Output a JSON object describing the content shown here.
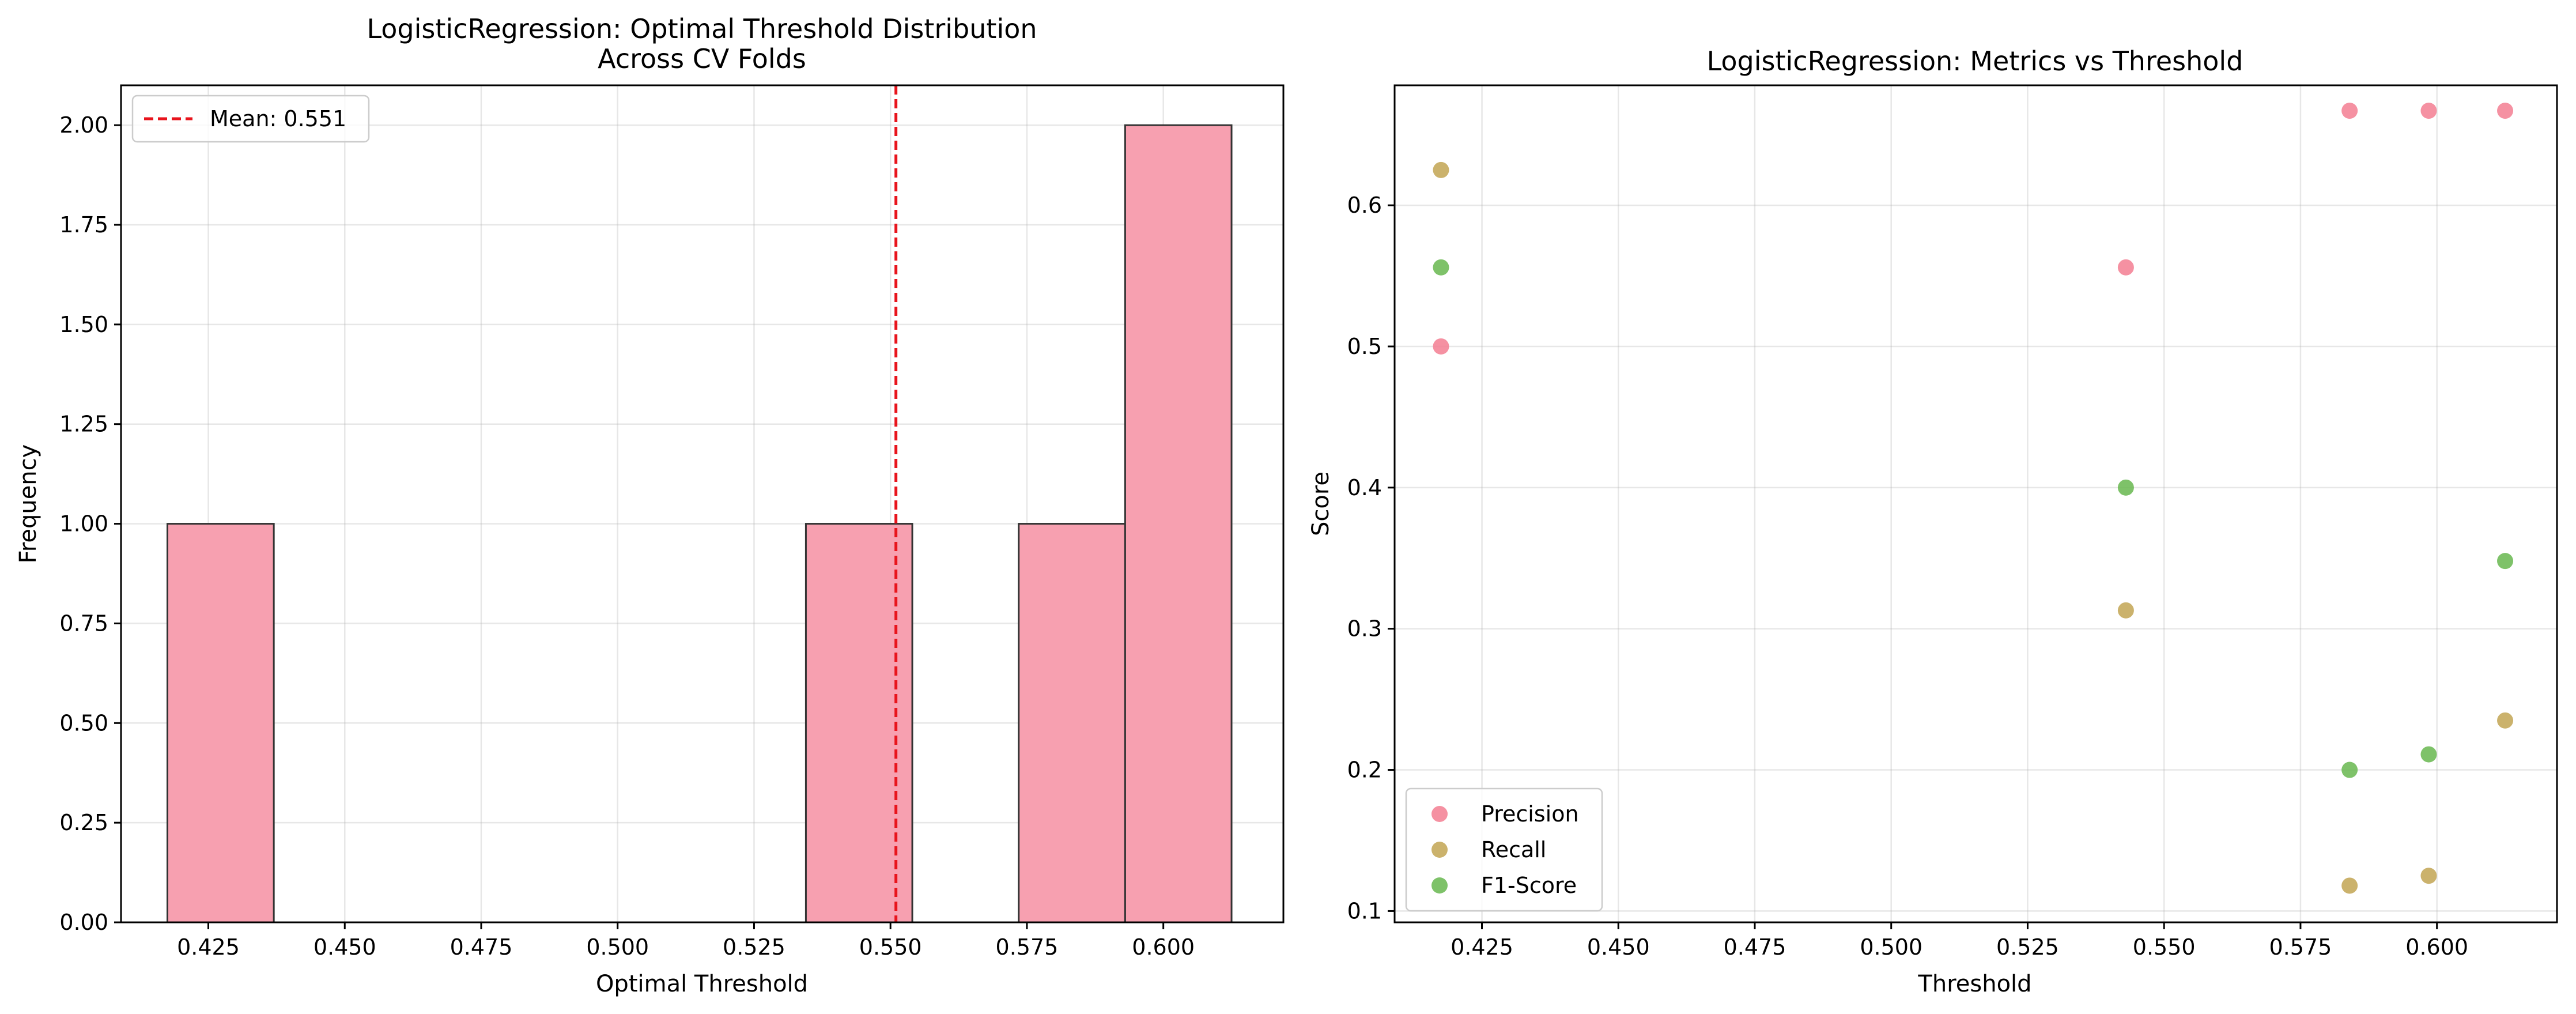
{
  "chart_data": [
    {
      "type": "bar",
      "subtype": "histogram",
      "title": "LogisticRegression: Optimal Threshold Distribution\nAcross CV Folds",
      "xlabel": "Optimal Threshold",
      "ylabel": "Frequency",
      "xlim": [
        0.409,
        0.622
      ],
      "ylim": [
        0,
        2.1
      ],
      "xticks": [
        0.425,
        0.45,
        0.475,
        0.5,
        0.525,
        0.55,
        0.575,
        0.6
      ],
      "xtick_labels": [
        "0.425",
        "0.450",
        "0.475",
        "0.500",
        "0.525",
        "0.550",
        "0.575",
        "0.600"
      ],
      "yticks": [
        0,
        0.25,
        0.5,
        0.75,
        1.0,
        1.25,
        1.5,
        1.75,
        2.0
      ],
      "ytick_labels": [
        "0.00",
        "0.25",
        "0.50",
        "0.75",
        "1.00",
        "1.25",
        "1.50",
        "1.75",
        "2.00"
      ],
      "bins": [
        {
          "x0": 0.4175,
          "x1": 0.437,
          "value": 1
        },
        {
          "x0": 0.437,
          "x1": 0.4565,
          "value": 0
        },
        {
          "x0": 0.4565,
          "x1": 0.476,
          "value": 0
        },
        {
          "x0": 0.476,
          "x1": 0.4955,
          "value": 0
        },
        {
          "x0": 0.4955,
          "x1": 0.515,
          "value": 0
        },
        {
          "x0": 0.515,
          "x1": 0.5345,
          "value": 0
        },
        {
          "x0": 0.5345,
          "x1": 0.554,
          "value": 1
        },
        {
          "x0": 0.554,
          "x1": 0.5735,
          "value": 0
        },
        {
          "x0": 0.5735,
          "x1": 0.593,
          "value": 1
        },
        {
          "x0": 0.593,
          "x1": 0.6125,
          "value": 2
        }
      ],
      "bar_color": "#f7a0b0",
      "bar_edge_color": "#333333",
      "mean_line": {
        "value": 0.551,
        "label": "Mean: 0.551",
        "color": "#e8141c"
      },
      "grid": true,
      "legend_position": "upper left"
    },
    {
      "type": "scatter",
      "title": "LogisticRegression: Metrics vs Threshold",
      "xlabel": "Threshold",
      "ylabel": "Score",
      "xlim": [
        0.409,
        0.622
      ],
      "ylim": [
        0.092,
        0.685
      ],
      "xticks": [
        0.425,
        0.45,
        0.475,
        0.5,
        0.525,
        0.55,
        0.575,
        0.6
      ],
      "xtick_labels": [
        "0.425",
        "0.450",
        "0.475",
        "0.500",
        "0.525",
        "0.550",
        "0.575",
        "0.600"
      ],
      "yticks": [
        0.1,
        0.2,
        0.3,
        0.4,
        0.5,
        0.6
      ],
      "ytick_labels": [
        "0.1",
        "0.2",
        "0.3",
        "0.4",
        "0.5",
        "0.6"
      ],
      "x": [
        0.4175,
        0.543,
        0.584,
        0.5985,
        0.6125
      ],
      "series": [
        {
          "name": "Precision",
          "color": "#f37e92",
          "values": [
            0.5,
            0.556,
            0.667,
            0.667,
            0.667
          ]
        },
        {
          "name": "Recall",
          "color": "#c2a452",
          "values": [
            0.625,
            0.313,
            0.118,
            0.125,
            0.235
          ]
        },
        {
          "name": "F1-Score",
          "color": "#67b74f",
          "values": [
            0.556,
            0.4,
            0.2,
            0.211,
            0.348
          ]
        }
      ],
      "grid": true,
      "legend_position": "lower left"
    }
  ]
}
